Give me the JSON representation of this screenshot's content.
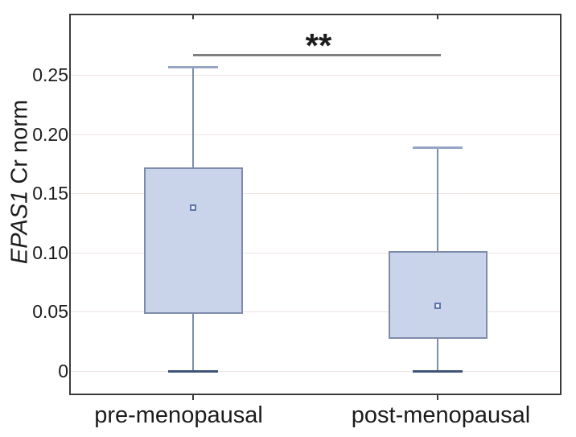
{
  "chart_data": {
    "type": "boxplot",
    "title": "",
    "ylabel": "EPAS1 Cr norm",
    "ylabel_italic_part": "EPAS1",
    "ylabel_regular_part": " Cr norm",
    "categories": [
      "pre-menopausal",
      "post-menopausal"
    ],
    "y_ticks": [
      0,
      0.05,
      0.1,
      0.15,
      0.2,
      0.25
    ],
    "y_tick_labels": [
      "0",
      "0.05",
      "0.10",
      "0.15",
      "0.20",
      "0.25"
    ],
    "ylim": [
      -0.021,
      0.302
    ],
    "grid": "horizontal-only",
    "legend": "none",
    "series": [
      {
        "category": "pre-menopausal",
        "box_low": 0.048,
        "box_high": 0.172,
        "mean": 0.138,
        "whisker_low": 0.0,
        "whisker_high": 0.257
      },
      {
        "category": "post-menopausal",
        "box_low": 0.027,
        "box_high": 0.101,
        "mean": 0.055,
        "whisker_low": 0.0,
        "whisker_high": 0.189
      }
    ],
    "significance": {
      "label": "**",
      "y": 0.268,
      "from": "pre-menopausal",
      "to": "post-menopausal"
    },
    "colors": {
      "box_fill": "#c9d3e9",
      "box_border": "#7e8cac",
      "whisker": "#7c8db0",
      "whisker_cap_top": "#96a5c4",
      "whisker_cap_bottom": "#3e5476",
      "mean_marker_border": "#5f77ab",
      "mean_marker_fill": "#e9eef7",
      "gridline": "#ede4e1",
      "frame": "#3c3c3c",
      "significance_line": "#7f7f7f",
      "text": "#1c1c1c"
    }
  }
}
